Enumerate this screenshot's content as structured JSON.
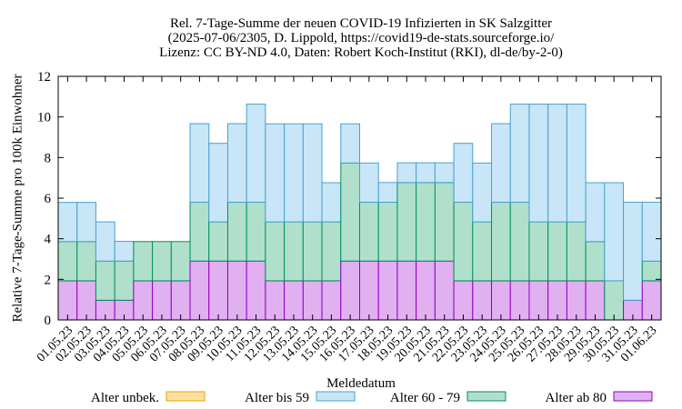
{
  "chart_data": {
    "type": "bar",
    "stacked": true,
    "title": [
      "Rel. 7-Tage-Summe der neuen COVID-19 Infizierten in SK Salzgitter",
      "(2025-07-06/2305, D. Lippold, https://covid19-de-stats.sourceforge.io/",
      "Lizenz: CC BY-ND 4.0, Daten: Robert Koch-Institut (RKI), dl-de/by-2-0)"
    ],
    "xlabel": "Meldedatum",
    "ylabel": "Relative 7-Tage-Summe pro 100k Einwohner",
    "ylim": [
      0,
      12
    ],
    "yticks": [
      "0",
      "2",
      "4",
      "6",
      "8",
      "10",
      "12"
    ],
    "grid": false,
    "legend_position": "bottom",
    "categories": [
      "01.05.23",
      "02.05.23",
      "03.05.23",
      "04.05.23",
      "05.05.23",
      "06.05.23",
      "07.05.23",
      "08.05.23",
      "09.05.23",
      "10.05.23",
      "11.05.23",
      "12.05.23",
      "13.05.23",
      "14.05.23",
      "15.05.23",
      "16.05.23",
      "17.05.23",
      "18.05.23",
      "19.05.23",
      "20.05.23",
      "21.05.23",
      "22.05.23",
      "23.05.23",
      "24.05.23",
      "25.05.23",
      "26.05.23",
      "27.05.23",
      "28.05.23",
      "29.05.23",
      "30.05.23",
      "31.05.23",
      "01.06.23"
    ],
    "series": [
      {
        "name": "Alter unbek.",
        "fill": "#fde0a0",
        "stroke": "#e6a300",
        "values": [
          0,
          0,
          0,
          0,
          0,
          0,
          0,
          0,
          0,
          0,
          0,
          0,
          0,
          0,
          0,
          0,
          0,
          0,
          0,
          0,
          0,
          0,
          0,
          0,
          0,
          0,
          0,
          0,
          0,
          0,
          0,
          0
        ]
      },
      {
        "name": "Alter ab 80",
        "fill": "#e0b0f0",
        "stroke": "#9400c0",
        "values": [
          1.93,
          1.93,
          0.97,
          0.97,
          1.93,
          1.93,
          1.93,
          2.9,
          2.9,
          2.9,
          2.9,
          1.93,
          1.93,
          1.93,
          1.93,
          2.9,
          2.9,
          2.9,
          2.9,
          2.9,
          2.9,
          1.93,
          1.93,
          1.93,
          1.93,
          1.93,
          1.93,
          1.93,
          1.93,
          0,
          0.97,
          1.93
        ]
      },
      {
        "name": "Alter 60 - 79",
        "fill": "#b0e0cc",
        "stroke": "#009060",
        "values": [
          1.93,
          1.93,
          1.93,
          1.93,
          1.93,
          1.93,
          1.93,
          2.9,
          1.93,
          2.9,
          2.9,
          2.9,
          2.9,
          2.9,
          2.9,
          4.83,
          2.9,
          2.9,
          3.87,
          3.87,
          3.87,
          3.87,
          2.9,
          3.87,
          3.87,
          2.9,
          2.9,
          2.9,
          1.93,
          1.93,
          0,
          0.97
        ]
      },
      {
        "name": "Alter bis 59",
        "fill": "#c8e6f8",
        "stroke": "#4aa0d0",
        "values": [
          1.93,
          1.93,
          1.93,
          0.97,
          0,
          0,
          0,
          3.87,
          3.87,
          3.87,
          4.83,
          4.83,
          4.83,
          4.83,
          1.93,
          1.93,
          1.93,
          0.97,
          0.97,
          0.97,
          0.97,
          2.9,
          2.9,
          3.87,
          4.83,
          5.8,
          5.8,
          5.8,
          2.9,
          4.83,
          4.83,
          2.9
        ]
      }
    ],
    "legend": [
      {
        "label": "Alter unbek.",
        "series_index": 0
      },
      {
        "label": "Alter bis 59",
        "series_index": 3
      },
      {
        "label": "Alter 60 - 79",
        "series_index": 2
      },
      {
        "label": "Alter ab 80",
        "series_index": 1
      }
    ]
  }
}
